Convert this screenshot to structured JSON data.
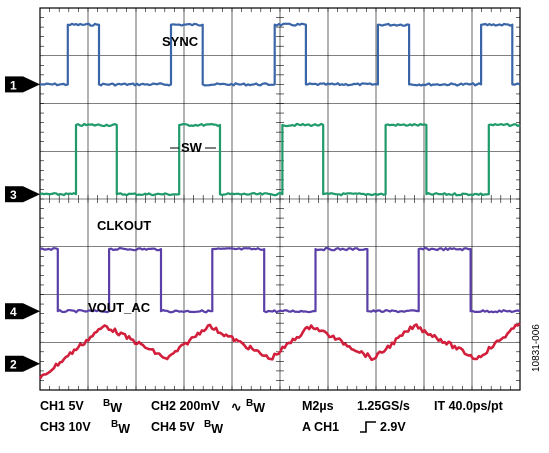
{
  "chart_data": {
    "type": "line",
    "title": "",
    "grid": true,
    "grid_divisions": {
      "x": 10,
      "y": 8
    },
    "time_per_division_us": 2,
    "x_range_divisions": [
      0,
      10
    ],
    "y_range_divisions": [
      -4,
      4
    ],
    "series": [
      {
        "name": "SYNC",
        "channel_marker": "1",
        "color": "#3a66a8",
        "shape": "pulse",
        "period_div": 2.15,
        "edges_div": [
          0.58,
          1.23,
          2.73,
          3.39,
          4.89,
          5.54,
          7.04,
          7.69,
          9.19,
          9.84
        ],
        "low_div": 2.4,
        "high_div": 3.65
      },
      {
        "name": "SW",
        "channel_marker": "3",
        "color": "#1f9a6a",
        "shape": "pulse",
        "period_div": 2.15,
        "edges_div": [
          0.75,
          1.6,
          2.9,
          3.75,
          5.05,
          5.9,
          7.2,
          8.05,
          9.35,
          10.2
        ],
        "low_div": 0.1,
        "high_div": 1.55
      },
      {
        "name": "CLKOUT",
        "channel_marker": "4",
        "color": "#5a3fa8",
        "shape": "square",
        "period_div": 2.15,
        "edges_div": [
          0.0,
          0.37,
          1.44,
          2.52,
          3.59,
          4.67,
          5.74,
          6.82,
          7.89,
          8.97,
          10.0
        ],
        "first_level": "high",
        "low_div": -2.35,
        "high_div": -1.05
      },
      {
        "name": "VOUT_AC",
        "channel_marker": "2",
        "color": "#d21f3c",
        "shape": "triangle",
        "peaks_div": [
          1.35,
          3.5,
          5.65,
          7.8,
          9.95
        ],
        "valleys_div": [
          0.5,
          2.65,
          4.8,
          6.95,
          9.1
        ],
        "peak_div": -2.65,
        "valley_div": -3.35
      }
    ]
  },
  "status": {
    "line1": {
      "ch1": "CH1  5V",
      "ch1_bw": "B",
      "ch1_bw_sub": "W",
      "ch2": "CH2  200mV",
      "ch2_ac": "∿",
      "ch2_bw": "B",
      "ch2_bw_sub": "W",
      "timebase": "M2µs",
      "sample_rate": "1.25GS/s",
      "it": "IT 40.0ps/pt"
    },
    "line2": {
      "ch3": "CH3  10V",
      "ch3_bw": "B",
      "ch3_bw_sub": "W",
      "ch4": "CH4  5V",
      "ch4_bw": "B",
      "ch4_bw_sub": "W",
      "trigger": "A  CH1",
      "trigger_level": "2.9V"
    }
  },
  "figure_id": "10831-006"
}
